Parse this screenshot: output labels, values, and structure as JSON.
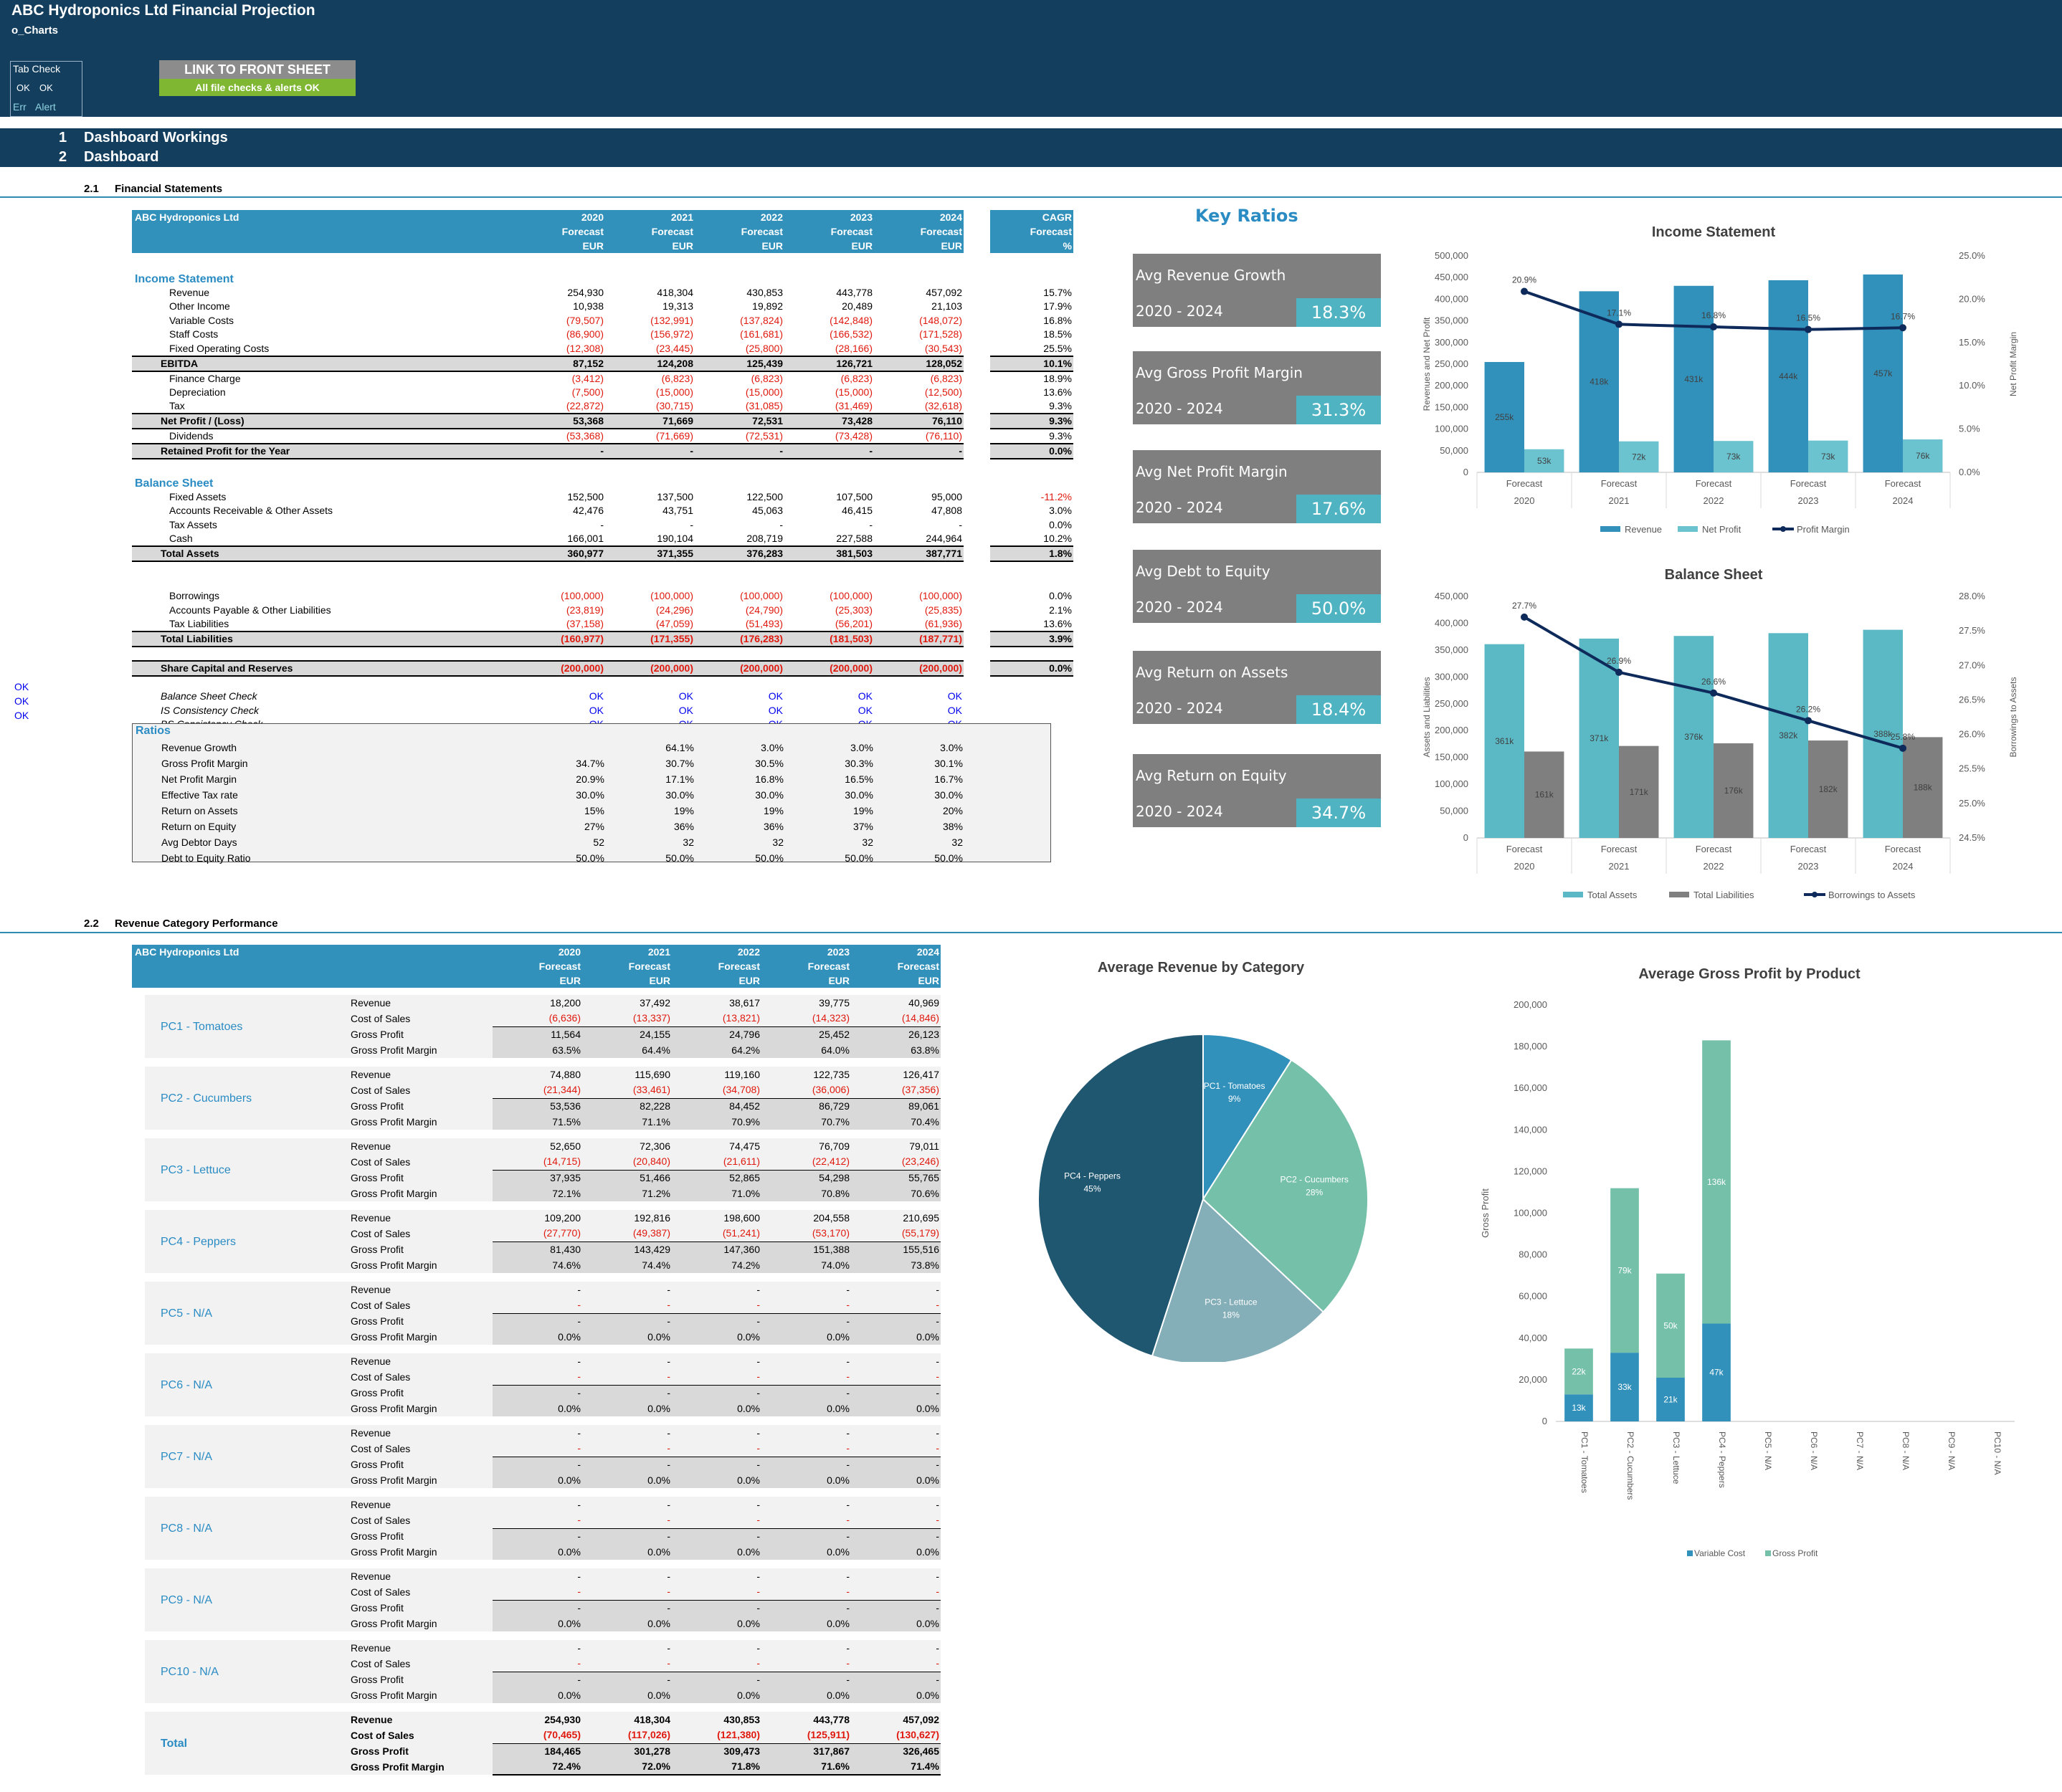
{
  "header": {
    "title": "ABC Hydroponics Ltd Financial Projection",
    "sheet": "o_Charts"
  },
  "tab_check": {
    "title": "Tab Check",
    "ok1": "OK",
    "ok2": "OK",
    "err": "Err",
    "alert": "Alert"
  },
  "link_button": "LINK TO FRONT SHEET",
  "all_ok": "All file checks & alerts OK",
  "nav": [
    {
      "num": "1",
      "label": "Dashboard Workings"
    },
    {
      "num": "2",
      "label": "Dashboard"
    }
  ],
  "sections": {
    "s21_num": "2.1",
    "s21": "Financial Statements",
    "s22_num": "2.2",
    "s22": "Revenue Category Performance"
  },
  "fs_header": {
    "company": "ABC Hydroponics Ltd",
    "years": [
      "2020",
      "2021",
      "2022",
      "2023",
      "2024"
    ],
    "forecast": "Forecast",
    "currency": "EUR",
    "cagr": "CAGR",
    "pct": "%"
  },
  "fs_rows": [
    {
      "t": "blank"
    },
    {
      "t": "section",
      "label": "Income Statement"
    },
    {
      "t": "row",
      "label": "Revenue",
      "v": [
        "254,930",
        "418,304",
        "430,853",
        "443,778",
        "457,092"
      ],
      "c": "15.7%"
    },
    {
      "t": "row",
      "label": "Other Income",
      "v": [
        "10,938",
        "19,313",
        "19,892",
        "20,489",
        "21,103"
      ],
      "c": "17.9%"
    },
    {
      "t": "row",
      "label": "Variable Costs",
      "v": [
        "(79,507)",
        "(132,991)",
        "(137,824)",
        "(142,848)",
        "(148,072)"
      ],
      "c": "16.8%",
      "neg": true
    },
    {
      "t": "row",
      "label": "Staff Costs",
      "v": [
        "(86,900)",
        "(156,972)",
        "(161,681)",
        "(166,532)",
        "(171,528)"
      ],
      "c": "18.5%",
      "neg": true
    },
    {
      "t": "row",
      "label": "Fixed Operating Costs",
      "v": [
        "(12,308)",
        "(23,445)",
        "(25,800)",
        "(28,166)",
        "(30,543)"
      ],
      "c": "25.5%",
      "neg": true
    },
    {
      "t": "total",
      "label": "EBITDA",
      "v": [
        "87,152",
        "124,208",
        "125,439",
        "126,721",
        "128,052"
      ],
      "c": "10.1%"
    },
    {
      "t": "row",
      "label": "Finance Charge",
      "v": [
        "(3,412)",
        "(6,823)",
        "(6,823)",
        "(6,823)",
        "(6,823)"
      ],
      "c": "18.9%",
      "neg": true
    },
    {
      "t": "row",
      "label": "Depreciation",
      "v": [
        "(7,500)",
        "(15,000)",
        "(15,000)",
        "(15,000)",
        "(12,500)"
      ],
      "c": "13.6%",
      "neg": true
    },
    {
      "t": "row",
      "label": "Tax",
      "v": [
        "(22,872)",
        "(30,715)",
        "(31,085)",
        "(31,469)",
        "(32,618)"
      ],
      "c": "9.3%",
      "neg": true
    },
    {
      "t": "total",
      "label": "Net Profit / (Loss)",
      "v": [
        "53,368",
        "71,669",
        "72,531",
        "73,428",
        "76,110"
      ],
      "c": "9.3%"
    },
    {
      "t": "row",
      "label": "Dividends",
      "v": [
        "(53,368)",
        "(71,669)",
        "(72,531)",
        "(73,428)",
        "(76,110)"
      ],
      "c": "9.3%",
      "neg": true
    },
    {
      "t": "total",
      "label": "Retained Profit for the Year",
      "v": [
        "-",
        "-",
        "-",
        "-",
        "-"
      ],
      "c": "0.0%"
    },
    {
      "t": "blank"
    },
    {
      "t": "section",
      "label": "Balance Sheet"
    },
    {
      "t": "row",
      "label": "Fixed Assets",
      "v": [
        "152,500",
        "137,500",
        "122,500",
        "107,500",
        "95,000"
      ],
      "c": "-11.2%",
      "cneg": true
    },
    {
      "t": "row",
      "label": "Accounts Receivable & Other Assets",
      "v": [
        "42,476",
        "43,751",
        "45,063",
        "46,415",
        "47,808"
      ],
      "c": "3.0%"
    },
    {
      "t": "row",
      "label": "Tax Assets",
      "v": [
        "-",
        "-",
        "-",
        "-",
        "-"
      ],
      "c": "0.0%"
    },
    {
      "t": "row",
      "label": "Cash",
      "v": [
        "166,001",
        "190,104",
        "208,719",
        "227,588",
        "244,964"
      ],
      "c": "10.2%"
    },
    {
      "t": "total",
      "label": "Total Assets",
      "v": [
        "360,977",
        "371,355",
        "376,283",
        "381,503",
        "387,771"
      ],
      "c": "1.8%"
    },
    {
      "t": "blank"
    },
    {
      "t": "blank"
    },
    {
      "t": "row",
      "label": "Borrowings",
      "v": [
        "(100,000)",
        "(100,000)",
        "(100,000)",
        "(100,000)",
        "(100,000)"
      ],
      "c": "0.0%",
      "neg": true
    },
    {
      "t": "row",
      "label": "Accounts Payable & Other Liabilities",
      "v": [
        "(23,819)",
        "(24,296)",
        "(24,790)",
        "(25,303)",
        "(25,835)"
      ],
      "c": "2.1%",
      "neg": true
    },
    {
      "t": "row",
      "label": "Tax Liabilities",
      "v": [
        "(37,158)",
        "(47,059)",
        "(51,493)",
        "(56,201)",
        "(61,936)"
      ],
      "c": "13.6%",
      "neg": true
    },
    {
      "t": "total",
      "label": "Total Liabilities",
      "v": [
        "(160,977)",
        "(171,355)",
        "(176,283)",
        "(181,503)",
        "(187,771)"
      ],
      "c": "3.9%",
      "neg": true
    },
    {
      "t": "blank"
    },
    {
      "t": "total",
      "label": "Share Capital and Reserves",
      "v": [
        "(200,000)",
        "(200,000)",
        "(200,000)",
        "(200,000)",
        "(200,000)"
      ],
      "c": "0.0%",
      "neg": true
    },
    {
      "t": "blank"
    },
    {
      "t": "check",
      "label": "Balance Sheet Check",
      "v": [
        "OK",
        "OK",
        "OK",
        "OK",
        "OK"
      ]
    },
    {
      "t": "check",
      "label": "IS Consistency Check",
      "v": [
        "OK",
        "OK",
        "OK",
        "OK",
        "OK"
      ]
    },
    {
      "t": "check",
      "label": "BS Consistency Check",
      "v": [
        "OK",
        "OK",
        "OK",
        "OK",
        "OK"
      ]
    }
  ],
  "left_ok": [
    "OK",
    "OK",
    "OK"
  ],
  "ratios": {
    "title": "Ratios",
    "rows": [
      {
        "label": "Revenue Growth",
        "v": [
          "",
          "64.1%",
          "3.0%",
          "3.0%",
          "3.0%"
        ]
      },
      {
        "label": "Gross Profit Margin",
        "v": [
          "34.7%",
          "30.7%",
          "30.5%",
          "30.3%",
          "30.1%"
        ]
      },
      {
        "label": "Net Profit Margin",
        "v": [
          "20.9%",
          "17.1%",
          "16.8%",
          "16.5%",
          "16.7%"
        ]
      },
      {
        "label": "Effective Tax rate",
        "v": [
          "30.0%",
          "30.0%",
          "30.0%",
          "30.0%",
          "30.0%"
        ]
      },
      {
        "label": "Return on Assets",
        "v": [
          "15%",
          "19%",
          "19%",
          "19%",
          "20%"
        ]
      },
      {
        "label": "Return on Equity",
        "v": [
          "27%",
          "36%",
          "36%",
          "37%",
          "38%"
        ]
      },
      {
        "label": "Avg Debtor Days",
        "v": [
          "52",
          "32",
          "32",
          "32",
          "32"
        ]
      },
      {
        "label": "Debt to Equity Ratio",
        "v": [
          "50.0%",
          "50.0%",
          "50.0%",
          "50.0%",
          "50.0%"
        ]
      }
    ]
  },
  "key_ratios": {
    "title": "Key Ratios",
    "period": "2020 - 2024",
    "items": [
      {
        "label": "Avg Revenue Growth",
        "value": "18.3%"
      },
      {
        "label": "Avg Gross Profit Margin",
        "value": "31.3%"
      },
      {
        "label": "Avg Net Profit Margin",
        "value": "17.6%"
      },
      {
        "label": "Avg Debt to Equity",
        "value": "50.0%"
      },
      {
        "label": "Avg Return on Assets",
        "value": "18.4%"
      },
      {
        "label": "Avg Return on Equity",
        "value": "34.7%"
      }
    ]
  },
  "cat_header": {
    "company": "ABC Hydroponics Ltd"
  },
  "cat_row_labels": [
    "Revenue",
    "Cost of Sales",
    "Gross Profit",
    "Gross Profit Margin"
  ],
  "categories": [
    {
      "name": "PC1 - Tomatoes",
      "rev": [
        "18,200",
        "37,492",
        "38,617",
        "39,775",
        "40,969"
      ],
      "cos": [
        "(6,636)",
        "(13,337)",
        "(13,821)",
        "(14,323)",
        "(14,846)"
      ],
      "gp": [
        "11,564",
        "24,155",
        "24,796",
        "25,452",
        "26,123"
      ],
      "gpm": [
        "63.5%",
        "64.4%",
        "64.2%",
        "64.0%",
        "63.8%"
      ]
    },
    {
      "name": "PC2 - Cucumbers",
      "rev": [
        "74,880",
        "115,690",
        "119,160",
        "122,735",
        "126,417"
      ],
      "cos": [
        "(21,344)",
        "(33,461)",
        "(34,708)",
        "(36,006)",
        "(37,356)"
      ],
      "gp": [
        "53,536",
        "82,228",
        "84,452",
        "86,729",
        "89,061"
      ],
      "gpm": [
        "71.5%",
        "71.1%",
        "70.9%",
        "70.7%",
        "70.4%"
      ]
    },
    {
      "name": "PC3 - Lettuce",
      "rev": [
        "52,650",
        "72,306",
        "74,475",
        "76,709",
        "79,011"
      ],
      "cos": [
        "(14,715)",
        "(20,840)",
        "(21,611)",
        "(22,412)",
        "(23,246)"
      ],
      "gp": [
        "37,935",
        "51,466",
        "52,865",
        "54,298",
        "55,765"
      ],
      "gpm": [
        "72.1%",
        "71.2%",
        "71.0%",
        "70.8%",
        "70.6%"
      ]
    },
    {
      "name": "PC4 - Peppers",
      "rev": [
        "109,200",
        "192,816",
        "198,600",
        "204,558",
        "210,695"
      ],
      "cos": [
        "(27,770)",
        "(49,387)",
        "(51,241)",
        "(53,170)",
        "(55,179)"
      ],
      "gp": [
        "81,430",
        "143,429",
        "147,360",
        "151,388",
        "155,516"
      ],
      "gpm": [
        "74.6%",
        "74.4%",
        "74.2%",
        "74.0%",
        "73.8%"
      ]
    },
    {
      "name": "PC5 - N/A",
      "rev": [
        "-",
        "-",
        "-",
        "-",
        "-"
      ],
      "cos": [
        "-",
        "-",
        "-",
        "-",
        "-"
      ],
      "gp": [
        "-",
        "-",
        "-",
        "-",
        "-"
      ],
      "gpm": [
        "0.0%",
        "0.0%",
        "0.0%",
        "0.0%",
        "0.0%"
      ]
    },
    {
      "name": "PC6 - N/A",
      "rev": [
        "-",
        "-",
        "-",
        "-",
        "-"
      ],
      "cos": [
        "-",
        "-",
        "-",
        "-",
        "-"
      ],
      "gp": [
        "-",
        "-",
        "-",
        "-",
        "-"
      ],
      "gpm": [
        "0.0%",
        "0.0%",
        "0.0%",
        "0.0%",
        "0.0%"
      ]
    },
    {
      "name": "PC7 - N/A",
      "rev": [
        "-",
        "-",
        "-",
        "-",
        "-"
      ],
      "cos": [
        "-",
        "-",
        "-",
        "-",
        "-"
      ],
      "gp": [
        "-",
        "-",
        "-",
        "-",
        "-"
      ],
      "gpm": [
        "0.0%",
        "0.0%",
        "0.0%",
        "0.0%",
        "0.0%"
      ]
    },
    {
      "name": "PC8 - N/A",
      "rev": [
        "-",
        "-",
        "-",
        "-",
        "-"
      ],
      "cos": [
        "-",
        "-",
        "-",
        "-",
        "-"
      ],
      "gp": [
        "-",
        "-",
        "-",
        "-",
        "-"
      ],
      "gpm": [
        "0.0%",
        "0.0%",
        "0.0%",
        "0.0%",
        "0.0%"
      ]
    },
    {
      "name": "PC9 - N/A",
      "rev": [
        "-",
        "-",
        "-",
        "-",
        "-"
      ],
      "cos": [
        "-",
        "-",
        "-",
        "-",
        "-"
      ],
      "gp": [
        "-",
        "-",
        "-",
        "-",
        "-"
      ],
      "gpm": [
        "0.0%",
        "0.0%",
        "0.0%",
        "0.0%",
        "0.0%"
      ]
    },
    {
      "name": "PC10 - N/A",
      "rev": [
        "-",
        "-",
        "-",
        "-",
        "-"
      ],
      "cos": [
        "-",
        "-",
        "-",
        "-",
        "-"
      ],
      "gp": [
        "-",
        "-",
        "-",
        "-",
        "-"
      ],
      "gpm": [
        "0.0%",
        "0.0%",
        "0.0%",
        "0.0%",
        "0.0%"
      ]
    }
  ],
  "cat_total": {
    "name": "Total",
    "rev": [
      "254,930",
      "418,304",
      "430,853",
      "443,778",
      "457,092"
    ],
    "cos": [
      "(70,465)",
      "(117,026)",
      "(121,380)",
      "(125,911)",
      "(130,627)"
    ],
    "gp": [
      "184,465",
      "301,278",
      "309,473",
      "317,867",
      "326,465"
    ],
    "gpm": [
      "72.4%",
      "72.0%",
      "71.8%",
      "71.6%",
      "71.4%"
    ]
  },
  "colors": {
    "navy": "#133E5E",
    "blue": "#3291BB",
    "teal": "#4FB3C2",
    "lightblue": "#6BC3D0",
    "gray": "#7F7F7F",
    "green": "#7FB733",
    "red": "#E0190E",
    "line": "#0E2A5A",
    "mint": "#75C0A8"
  },
  "chart_data": [
    {
      "type": "bar",
      "title": "Income Statement",
      "categories": [
        "2020",
        "2021",
        "2022",
        "2023",
        "2024"
      ],
      "category_sublabel": "Forecast",
      "series": [
        {
          "name": "Revenue",
          "values": [
            254930,
            418304,
            430853,
            443778,
            457092
          ],
          "labels": [
            "255k",
            "418k",
            "431k",
            "444k",
            "457k"
          ]
        },
        {
          "name": "Net Profit",
          "values": [
            53368,
            71669,
            72531,
            73428,
            76110
          ],
          "labels": [
            "53k",
            "72k",
            "73k",
            "73k",
            "76k"
          ]
        },
        {
          "name": "Profit Margin",
          "axis": "secondary",
          "values": [
            20.9,
            17.1,
            16.8,
            16.5,
            16.7
          ],
          "labels": [
            "20.9%",
            "17.1%",
            "16.8%",
            "16.5%",
            "16.7%"
          ]
        }
      ],
      "ylabel": "Revenues and Net Profit",
      "y2label": "Net Profit Margin",
      "yticks": [
        "0",
        "50,000",
        "100,000",
        "150,000",
        "200,000",
        "250,000",
        "300,000",
        "350,000",
        "400,000",
        "450,000",
        "500,000"
      ],
      "y2ticks": [
        "0.0%",
        "5.0%",
        "10.0%",
        "15.0%",
        "20.0%",
        "25.0%"
      ],
      "ylim": [
        0,
        500000
      ],
      "y2lim": [
        0,
        25
      ],
      "legend": "bottom"
    },
    {
      "type": "bar",
      "title": "Balance Sheet",
      "categories": [
        "2020",
        "2021",
        "2022",
        "2023",
        "2024"
      ],
      "category_sublabel": "Forecast",
      "series": [
        {
          "name": "Total Assets",
          "values": [
            360977,
            371355,
            376283,
            381503,
            387771
          ],
          "labels": [
            "361k",
            "371k",
            "376k",
            "382k",
            "388k"
          ]
        },
        {
          "name": "Total Liabilities",
          "values": [
            160977,
            171355,
            176283,
            181503,
            187771
          ],
          "labels": [
            "161k",
            "171k",
            "176k",
            "182k",
            "188k"
          ]
        },
        {
          "name": "Borrowings to Assets",
          "axis": "secondary",
          "values": [
            27.7,
            26.9,
            26.6,
            26.2,
            25.8
          ],
          "labels": [
            "27.7%",
            "26.9%",
            "26.6%",
            "26.2%",
            "25.8%"
          ]
        }
      ],
      "ylabel": "Assets and Liabilities",
      "y2label": "Borrowings to Assets",
      "yticks": [
        "0",
        "50,000",
        "100,000",
        "150,000",
        "200,000",
        "250,000",
        "300,000",
        "350,000",
        "400,000",
        "450,000"
      ],
      "y2ticks": [
        "24.5%",
        "25.0%",
        "25.5%",
        "26.0%",
        "26.5%",
        "27.0%",
        "27.5%",
        "28.0%"
      ],
      "ylim": [
        0,
        450000
      ],
      "y2lim": [
        24.5,
        28
      ],
      "legend": "bottom"
    },
    {
      "type": "pie",
      "title": "Average Revenue by Category",
      "slices": [
        {
          "name": "PC1 - Tomatoes",
          "pct": "9%",
          "value": 9
        },
        {
          "name": "PC2 - Cucumbers",
          "pct": "28%",
          "value": 28
        },
        {
          "name": "PC3 - Lettuce",
          "pct": "18%",
          "value": 18
        },
        {
          "name": "PC4 - Peppers",
          "pct": "45%",
          "value": 45
        }
      ]
    },
    {
      "type": "bar",
      "stacked": true,
      "title": "Average Gross Profit by Product",
      "categories": [
        "PC1 - Tomatoes",
        "PC2 - Cucumbers",
        "PC3 - Lettuce",
        "PC4 - Peppers",
        "PC5 - N/A",
        "PC6 - N/A",
        "PC7 - N/A",
        "PC8 - N/A",
        "PC9 - N/A",
        "PC10 - N/A"
      ],
      "series": [
        {
          "name": "Variable Cost",
          "values": [
            13000,
            33000,
            21000,
            47000,
            0,
            0,
            0,
            0,
            0,
            0
          ],
          "labels": [
            "13k",
            "33k",
            "21k",
            "47k",
            "",
            "",
            "",
            "",
            "",
            ""
          ]
        },
        {
          "name": "Gross Profit",
          "values": [
            22000,
            79000,
            50000,
            136000,
            0,
            0,
            0,
            0,
            0,
            0
          ],
          "labels": [
            "22k",
            "79k",
            "50k",
            "136k",
            "",
            "",
            "",
            "",
            "",
            ""
          ]
        }
      ],
      "ylabel": "Gross Profit",
      "yticks": [
        "0",
        "20,000",
        "40,000",
        "60,000",
        "80,000",
        "100,000",
        "120,000",
        "140,000",
        "160,000",
        "180,000",
        "200,000"
      ],
      "ylim": [
        0,
        200000
      ],
      "legend": "bottom"
    }
  ]
}
